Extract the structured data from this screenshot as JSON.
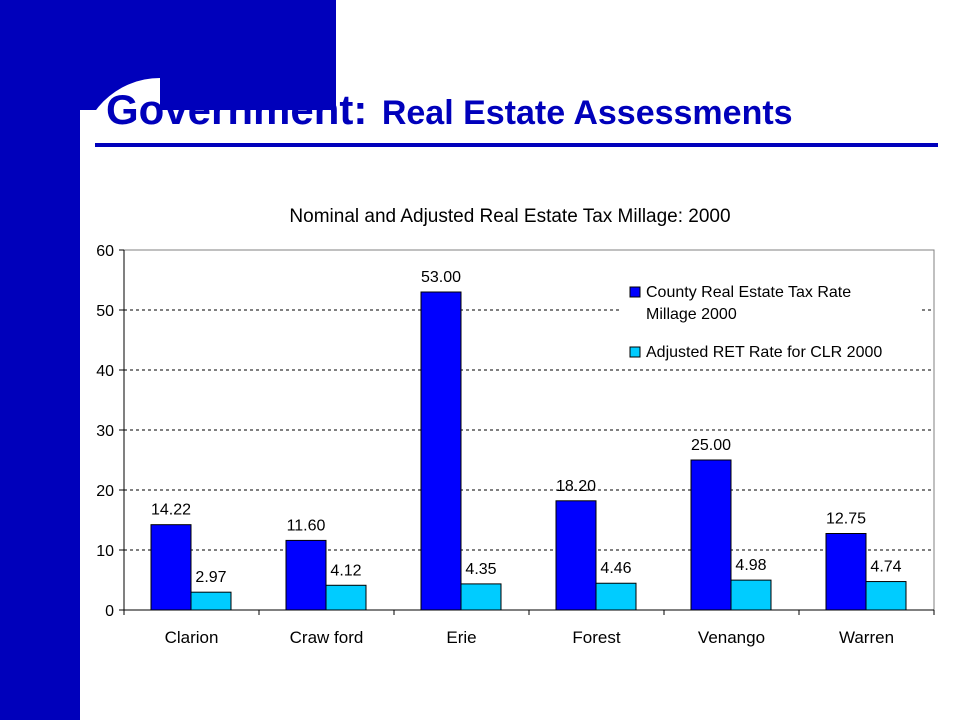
{
  "slide": {
    "title_main": "Government:",
    "title_sub": "Real Estate Assessments",
    "colors": {
      "band": "#0000bb",
      "title": "#0000bb"
    }
  },
  "chart_data": {
    "type": "bar",
    "title": "Nominal and Adjusted Real Estate Tax Millage: 2000",
    "xlabel": "",
    "ylabel": "",
    "categories": [
      "Clarion",
      "Craw ford",
      "Erie",
      "Forest",
      "Venango",
      "Warren"
    ],
    "series": [
      {
        "name": "County Real Estate Tax Rate Millage 2000",
        "legend_lines": [
          "County Real Estate Tax Rate",
          "Millage 2000"
        ],
        "color": "#0000ff",
        "values": [
          14.22,
          11.6,
          53.0,
          18.2,
          25.0,
          12.75
        ],
        "labels": [
          "14.22",
          "11.60",
          "53.00",
          "18.20",
          "25.00",
          "12.75"
        ]
      },
      {
        "name": "Adjusted RET Rate for CLR 2000",
        "legend_lines": [
          "Adjusted RET Rate for CLR 2000"
        ],
        "color": "#00ccff",
        "values": [
          2.97,
          4.12,
          4.35,
          4.46,
          4.98,
          4.74
        ],
        "labels": [
          "2.97",
          "4.12",
          "4.35",
          "4.46",
          "4.98",
          "4.74"
        ]
      }
    ],
    "ylim": [
      0,
      60
    ],
    "yticks": [
      0,
      10,
      20,
      30,
      40,
      50,
      60
    ],
    "grid": true,
    "legend_position": "top-right"
  }
}
